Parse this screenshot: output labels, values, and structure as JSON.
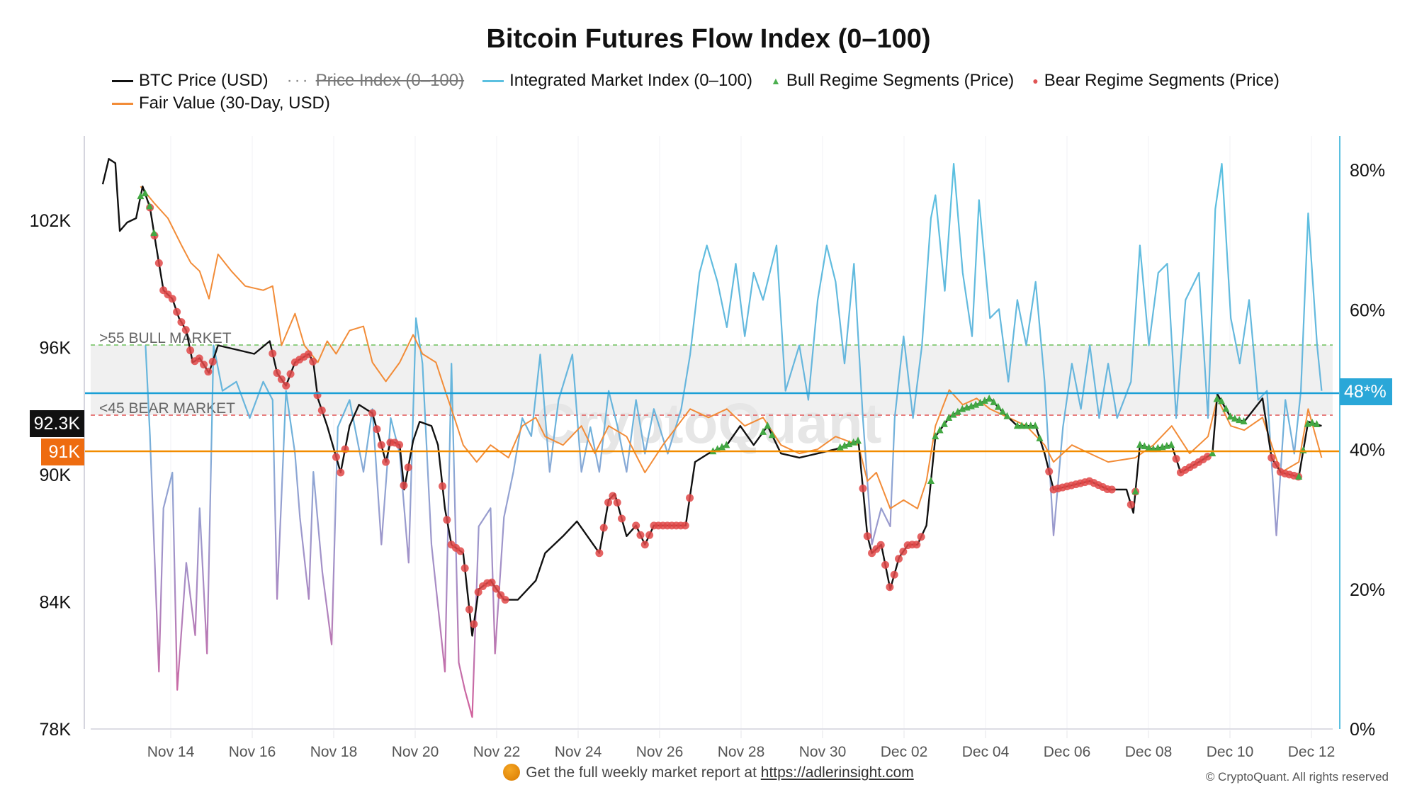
{
  "chart_data": {
    "type": "line",
    "title": "Bitcoin Futures Flow Index (0–100)",
    "legend": [
      {
        "label": "BTC Price (USD)",
        "color": "#111111",
        "style": "line"
      },
      {
        "label": "Price Index (0–100)",
        "color": "#888888",
        "style": "dotted",
        "hidden": true
      },
      {
        "label": "Integrated Market Index (0–100)",
        "color": "#5bc0e0",
        "style": "line"
      },
      {
        "label": "Bull Regime Segments (Price)",
        "color": "#4caf50",
        "style": "triangle"
      },
      {
        "label": "Bear Regime Segments (Price)",
        "color": "#e05555",
        "style": "dot"
      },
      {
        "label": "Fair Value (30-Day, USD)",
        "color": "#f28c38",
        "style": "line"
      }
    ],
    "legend_placement": "top",
    "x_unit": "day (Nov=day, Dec=30+day)",
    "x_ticks": [
      "Nov 14",
      "Nov 16",
      "Nov 18",
      "Nov 20",
      "Nov 22",
      "Nov 24",
      "Nov 26",
      "Nov 28",
      "Nov 30",
      "Dec 02",
      "Dec 04",
      "Dec 06",
      "Dec 08",
      "Dec 10",
      "Dec 12"
    ],
    "x_tick_days": [
      14,
      16,
      18,
      20,
      22,
      24,
      26,
      28,
      30,
      32,
      34,
      36,
      38,
      40,
      42
    ],
    "y_left": {
      "ticks": [
        "102K",
        "96K",
        "90K",
        "84K",
        "78K"
      ],
      "tick_values": [
        102,
        96,
        90,
        84,
        78
      ],
      "range": [
        78,
        106
      ],
      "unit": "K USD"
    },
    "y_right": {
      "ticks": [
        "80%",
        "60%",
        "40%",
        "20%",
        "0%"
      ],
      "tick_values": [
        80,
        60,
        40,
        20,
        0
      ],
      "range": [
        0,
        85
      ]
    },
    "thresholds": {
      "bull_label": ">55 BULL MARKET",
      "bull": 55,
      "bear_label": "<45 BEAR MARKET",
      "bear": 45
    },
    "current_index_label": "48*%",
    "current_index": 48,
    "current_price_label": "92.3K",
    "current_price": 92.3,
    "fair_value_label": "91K",
    "fair_value": 91,
    "watermark": "CryptoQuant",
    "btc_price": [
      [
        12.33,
        103.7
      ],
      [
        12.48,
        104.9
      ],
      [
        12.64,
        104.7
      ],
      [
        12.75,
        101.5
      ],
      [
        12.93,
        101.9
      ],
      [
        13.15,
        102.1
      ],
      [
        13.31,
        103.6
      ],
      [
        13.49,
        102.6
      ],
      [
        13.64,
        100.8
      ],
      [
        13.82,
        98.7
      ],
      [
        14.04,
        98.3
      ],
      [
        14.2,
        97.4
      ],
      [
        14.38,
        96.8
      ],
      [
        14.54,
        95.3
      ],
      [
        14.71,
        95.5
      ],
      [
        14.94,
        94.8
      ],
      [
        15.16,
        96.1
      ],
      [
        15.61,
        95.9
      ],
      [
        16.05,
        95.7
      ],
      [
        16.43,
        96.3
      ],
      [
        16.61,
        94.8
      ],
      [
        16.83,
        94.2
      ],
      [
        17.05,
        95.3
      ],
      [
        17.39,
        95.7
      ],
      [
        17.5,
        95.3
      ],
      [
        17.61,
        93.6
      ],
      [
        17.84,
        92.3
      ],
      [
        18.17,
        90.1
      ],
      [
        18.39,
        92.3
      ],
      [
        18.62,
        93.3
      ],
      [
        18.95,
        92.9
      ],
      [
        19.17,
        91.4
      ],
      [
        19.28,
        90.6
      ],
      [
        19.4,
        91.6
      ],
      [
        19.62,
        91.4
      ],
      [
        19.73,
        89.3
      ],
      [
        19.95,
        91.6
      ],
      [
        20.11,
        92.5
      ],
      [
        20.4,
        92.3
      ],
      [
        20.56,
        91.4
      ],
      [
        20.73,
        88.4
      ],
      [
        20.89,
        86.7
      ],
      [
        21.18,
        86.3
      ],
      [
        21.4,
        82.4
      ],
      [
        21.56,
        84.6
      ],
      [
        21.85,
        85.0
      ],
      [
        22.18,
        84.1
      ],
      [
        22.52,
        84.1
      ],
      [
        22.96,
        85.0
      ],
      [
        23.19,
        86.3
      ],
      [
        23.63,
        87.1
      ],
      [
        23.97,
        87.8
      ],
      [
        24.52,
        86.3
      ],
      [
        24.75,
        88.8
      ],
      [
        24.9,
        89.1
      ],
      [
        25.19,
        87.1
      ],
      [
        25.42,
        87.6
      ],
      [
        25.64,
        86.7
      ],
      [
        25.86,
        87.6
      ],
      [
        26.31,
        87.6
      ],
      [
        26.64,
        87.6
      ],
      [
        26.87,
        90.6
      ],
      [
        27.2,
        91.0
      ],
      [
        27.65,
        91.4
      ],
      [
        27.98,
        92.3
      ],
      [
        28.31,
        91.4
      ],
      [
        28.65,
        92.3
      ],
      [
        28.98,
        91.0
      ],
      [
        29.43,
        90.8
      ],
      [
        29.88,
        91.0
      ],
      [
        30.32,
        91.2
      ],
      [
        30.88,
        91.6
      ],
      [
        31.1,
        87.1
      ],
      [
        31.21,
        86.3
      ],
      [
        31.44,
        86.7
      ],
      [
        31.66,
        84.6
      ],
      [
        31.88,
        86.1
      ],
      [
        32.1,
        86.7
      ],
      [
        32.33,
        86.7
      ],
      [
        32.55,
        87.6
      ],
      [
        32.77,
        91.8
      ],
      [
        33.11,
        92.7
      ],
      [
        33.44,
        93.1
      ],
      [
        33.78,
        93.3
      ],
      [
        34.11,
        93.6
      ],
      [
        34.45,
        92.9
      ],
      [
        34.78,
        92.3
      ],
      [
        35.23,
        92.3
      ],
      [
        35.45,
        91.0
      ],
      [
        35.67,
        89.3
      ],
      [
        36.12,
        89.5
      ],
      [
        36.56,
        89.7
      ],
      [
        37.01,
        89.3
      ],
      [
        37.46,
        89.3
      ],
      [
        37.63,
        88.2
      ],
      [
        37.79,
        91.4
      ],
      [
        38.12,
        91.2
      ],
      [
        38.57,
        91.4
      ],
      [
        38.79,
        90.1
      ],
      [
        39.24,
        90.6
      ],
      [
        39.57,
        91.0
      ],
      [
        39.69,
        93.8
      ],
      [
        40.02,
        92.7
      ],
      [
        40.35,
        92.5
      ],
      [
        40.8,
        93.6
      ],
      [
        41.02,
        90.8
      ],
      [
        41.25,
        90.1
      ],
      [
        41.69,
        89.9
      ],
      [
        41.92,
        92.5
      ],
      [
        42.25,
        92.3
      ]
    ],
    "fair_value_series": [
      [
        13.26,
        103.6
      ],
      [
        13.6,
        102.8
      ],
      [
        13.93,
        102.1
      ],
      [
        14.27,
        100.8
      ],
      [
        14.49,
        100.0
      ],
      [
        14.71,
        99.6
      ],
      [
        14.94,
        98.3
      ],
      [
        15.16,
        100.4
      ],
      [
        15.49,
        99.6
      ],
      [
        15.83,
        98.9
      ],
      [
        16.27,
        98.7
      ],
      [
        16.5,
        98.9
      ],
      [
        16.72,
        96.1
      ],
      [
        17.05,
        97.6
      ],
      [
        17.28,
        96.1
      ],
      [
        17.61,
        95.3
      ],
      [
        17.84,
        96.3
      ],
      [
        18.06,
        95.7
      ],
      [
        18.39,
        96.8
      ],
      [
        18.73,
        97.0
      ],
      [
        18.95,
        95.3
      ],
      [
        19.28,
        94.4
      ],
      [
        19.62,
        95.3
      ],
      [
        19.95,
        96.6
      ],
      [
        20.18,
        95.7
      ],
      [
        20.51,
        95.3
      ],
      [
        20.73,
        94.0
      ],
      [
        20.96,
        92.7
      ],
      [
        21.18,
        91.4
      ],
      [
        21.51,
        90.6
      ],
      [
        21.85,
        91.4
      ],
      [
        22.29,
        90.8
      ],
      [
        22.63,
        92.3
      ],
      [
        22.96,
        92.7
      ],
      [
        23.19,
        91.8
      ],
      [
        23.63,
        91.4
      ],
      [
        24.08,
        92.3
      ],
      [
        24.41,
        91.0
      ],
      [
        24.75,
        92.3
      ],
      [
        25.19,
        91.8
      ],
      [
        25.64,
        90.1
      ],
      [
        26.08,
        91.4
      ],
      [
        26.75,
        93.1
      ],
      [
        27.2,
        92.7
      ],
      [
        27.65,
        93.1
      ],
      [
        28.09,
        92.3
      ],
      [
        28.54,
        92.7
      ],
      [
        28.98,
        91.4
      ],
      [
        29.43,
        91.0
      ],
      [
        29.88,
        91.2
      ],
      [
        30.32,
        91.8
      ],
      [
        30.88,
        91.4
      ],
      [
        31.1,
        89.7
      ],
      [
        31.32,
        90.1
      ],
      [
        31.66,
        88.4
      ],
      [
        31.99,
        88.8
      ],
      [
        32.33,
        88.4
      ],
      [
        32.55,
        89.7
      ],
      [
        32.77,
        92.3
      ],
      [
        33.11,
        94.0
      ],
      [
        33.44,
        93.3
      ],
      [
        33.78,
        93.6
      ],
      [
        34.11,
        93.1
      ],
      [
        34.56,
        92.7
      ],
      [
        35.0,
        92.3
      ],
      [
        35.45,
        91.4
      ],
      [
        35.67,
        90.6
      ],
      [
        36.12,
        91.4
      ],
      [
        36.56,
        91.0
      ],
      [
        37.01,
        90.6
      ],
      [
        37.68,
        90.8
      ],
      [
        38.12,
        91.4
      ],
      [
        38.57,
        92.3
      ],
      [
        39.01,
        91.0
      ],
      [
        39.46,
        91.8
      ],
      [
        39.69,
        93.6
      ],
      [
        40.02,
        92.3
      ],
      [
        40.35,
        92.1
      ],
      [
        40.8,
        92.7
      ],
      [
        41.25,
        90.1
      ],
      [
        41.69,
        90.6
      ],
      [
        41.92,
        93.1
      ],
      [
        42.25,
        90.8
      ]
    ],
    "market_index": [
      [
        13.38,
        54.9
      ],
      [
        13.49,
        41.9
      ],
      [
        13.71,
        8.2
      ],
      [
        13.82,
        31.6
      ],
      [
        14.04,
        36.7
      ],
      [
        14.16,
        5.6
      ],
      [
        14.38,
        23.8
      ],
      [
        14.6,
        13.4
      ],
      [
        14.71,
        31.6
      ],
      [
        14.89,
        10.8
      ],
      [
        15.05,
        54.9
      ],
      [
        15.27,
        48.4
      ],
      [
        15.61,
        49.7
      ],
      [
        15.94,
        44.5
      ],
      [
        16.27,
        49.7
      ],
      [
        16.5,
        47.1
      ],
      [
        16.61,
        18.6
      ],
      [
        16.83,
        48.4
      ],
      [
        17.05,
        39.4
      ],
      [
        17.17,
        30.3
      ],
      [
        17.39,
        18.6
      ],
      [
        17.5,
        36.8
      ],
      [
        17.72,
        22.5
      ],
      [
        17.95,
        12.1
      ],
      [
        18.1,
        43.2
      ],
      [
        18.39,
        47.1
      ],
      [
        18.73,
        36.8
      ],
      [
        18.95,
        45.8
      ],
      [
        19.17,
        26.4
      ],
      [
        19.4,
        44.5
      ],
      [
        19.62,
        39.4
      ],
      [
        19.84,
        23.8
      ],
      [
        20.02,
        58.8
      ],
      [
        20.18,
        52.3
      ],
      [
        20.4,
        26.4
      ],
      [
        20.73,
        8.2
      ],
      [
        20.89,
        52.3
      ],
      [
        21.07,
        9.5
      ],
      [
        21.22,
        5.6
      ],
      [
        21.4,
        1.7
      ],
      [
        21.56,
        29.0
      ],
      [
        21.85,
        31.6
      ],
      [
        21.96,
        10.8
      ],
      [
        22.18,
        30.3
      ],
      [
        22.41,
        36.8
      ],
      [
        22.63,
        44.5
      ],
      [
        22.85,
        41.9
      ],
      [
        23.07,
        53.6
      ],
      [
        23.3,
        36.8
      ],
      [
        23.52,
        47.1
      ],
      [
        23.86,
        53.6
      ],
      [
        24.08,
        36.8
      ],
      [
        24.3,
        43.2
      ],
      [
        24.52,
        36.8
      ],
      [
        24.75,
        48.4
      ],
      [
        24.97,
        43.2
      ],
      [
        25.19,
        36.8
      ],
      [
        25.42,
        47.1
      ],
      [
        25.64,
        39.4
      ],
      [
        25.86,
        45.8
      ],
      [
        26.2,
        39.4
      ],
      [
        26.53,
        45.8
      ],
      [
        26.75,
        53.6
      ],
      [
        26.98,
        65.3
      ],
      [
        27.16,
        69.2
      ],
      [
        27.42,
        64.0
      ],
      [
        27.65,
        57.5
      ],
      [
        27.87,
        66.6
      ],
      [
        28.09,
        56.2
      ],
      [
        28.31,
        65.3
      ],
      [
        28.54,
        61.4
      ],
      [
        28.87,
        69.2
      ],
      [
        29.09,
        48.4
      ],
      [
        29.43,
        54.9
      ],
      [
        29.65,
        47.1
      ],
      [
        29.88,
        61.4
      ],
      [
        30.1,
        69.2
      ],
      [
        30.32,
        64.0
      ],
      [
        30.54,
        52.3
      ],
      [
        30.77,
        66.6
      ],
      [
        30.99,
        44.5
      ],
      [
        31.21,
        26.4
      ],
      [
        31.44,
        31.6
      ],
      [
        31.66,
        29.0
      ],
      [
        31.77,
        44.5
      ],
      [
        31.99,
        56.2
      ],
      [
        32.22,
        44.5
      ],
      [
        32.44,
        54.9
      ],
      [
        32.66,
        73.1
      ],
      [
        32.77,
        76.4
      ],
      [
        33.0,
        62.7
      ],
      [
        33.22,
        80.9
      ],
      [
        33.44,
        65.3
      ],
      [
        33.67,
        56.2
      ],
      [
        33.84,
        75.7
      ],
      [
        34.11,
        58.8
      ],
      [
        34.33,
        60.1
      ],
      [
        34.56,
        49.7
      ],
      [
        34.78,
        61.4
      ],
      [
        35.0,
        54.9
      ],
      [
        35.23,
        64.0
      ],
      [
        35.45,
        49.7
      ],
      [
        35.67,
        27.7
      ],
      [
        35.9,
        43.2
      ],
      [
        36.12,
        52.3
      ],
      [
        36.34,
        45.8
      ],
      [
        36.56,
        54.9
      ],
      [
        36.79,
        44.5
      ],
      [
        37.01,
        52.3
      ],
      [
        37.23,
        44.5
      ],
      [
        37.57,
        49.7
      ],
      [
        37.79,
        69.2
      ],
      [
        38.01,
        54.9
      ],
      [
        38.24,
        65.3
      ],
      [
        38.46,
        66.6
      ],
      [
        38.68,
        44.5
      ],
      [
        38.91,
        61.4
      ],
      [
        39.24,
        65.3
      ],
      [
        39.46,
        44.5
      ],
      [
        39.64,
        74.4
      ],
      [
        39.8,
        80.9
      ],
      [
        40.02,
        58.8
      ],
      [
        40.24,
        52.3
      ],
      [
        40.47,
        61.4
      ],
      [
        40.69,
        47.1
      ],
      [
        40.91,
        48.4
      ],
      [
        41.14,
        27.7
      ],
      [
        41.36,
        47.1
      ],
      [
        41.58,
        39.4
      ],
      [
        41.74,
        48.4
      ],
      [
        41.92,
        73.8
      ],
      [
        42.14,
        54.9
      ],
      [
        42.25,
        48.4
      ]
    ],
    "bear_segments": [
      [
        13.49,
        15.05
      ],
      [
        16.5,
        17.72
      ],
      [
        18.06,
        18.28
      ],
      [
        18.95,
        19.84
      ],
      [
        20.67,
        22.29
      ],
      [
        24.52,
        25.08
      ],
      [
        25.42,
        26.75
      ],
      [
        30.99,
        32.44
      ],
      [
        35.56,
        37.12
      ],
      [
        37.57,
        37.68
      ],
      [
        38.68,
        39.46
      ],
      [
        41.02,
        41.69
      ]
    ],
    "bull_segments": [
      [
        13.26,
        13.6
      ],
      [
        27.31,
        27.65
      ],
      [
        28.54,
        28.76
      ],
      [
        30.43,
        30.88
      ],
      [
        32.66,
        34.56
      ],
      [
        34.78,
        35.34
      ],
      [
        37.68,
        38.57
      ],
      [
        39.57,
        40.35
      ],
      [
        41.69,
        42.14
      ]
    ]
  },
  "footer": {
    "text": "Get the full weekly market report at",
    "link": "https://adlerinsight.com",
    "copyright": "© CryptoQuant. All rights reserved"
  }
}
